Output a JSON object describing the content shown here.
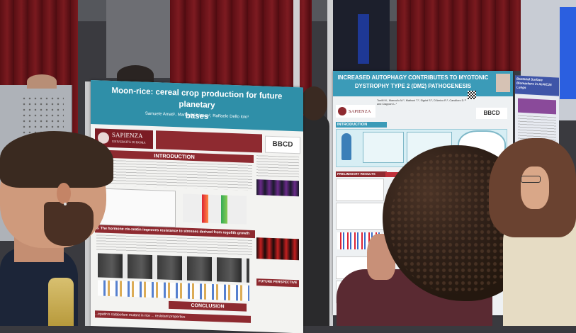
{
  "poster_left": {
    "title_line1": "Moon-rice: cereal crop production for future planetary",
    "title_line2": "bases",
    "authors": "Samuele Amati¹, Marta del bianco², Raffaele Dello Ioio¹",
    "logo_university_top": "SAPIENZA",
    "logo_university_bottom": "UNIVERSITÀ DI ROMA",
    "logo_bbcd": "BBCD",
    "section_intro": "INTRODUCTION",
    "section_3": "3. The hormone cis-zeatin improves resistance to stresses derived from regolith growth",
    "section_conclusion": "CONCLUSION",
    "section_future": "FUTURE PERSPECTIVE",
    "section_bottom": "...epatin's catabolism mutant in rice ... resistant properties"
  },
  "poster_right": {
    "title_line1": "INCREASED AUTOPHAGY CONTRIBUTES TO MYOTONIC",
    "title_line2": "DYSTROPHY TYPE 2 (DM2) PATHOGENESIS",
    "authors": "Tonilli M., Mancullo M.¹, Mathoni T.², Sigrist S.³, D'Amico R.¹, Candiloro D.¹² and Ciapponi L.¹",
    "logo_university_top": "SAPIENZA",
    "logo_bbcd": "BBCD",
    "section_intro": "INTRODUCTION",
    "section_prelim": "PRELIMINARY RESULTS"
  },
  "poster_far_right": {
    "title": "Bacterial Surface Biomarkers in AcA/C26 Lungs"
  }
}
